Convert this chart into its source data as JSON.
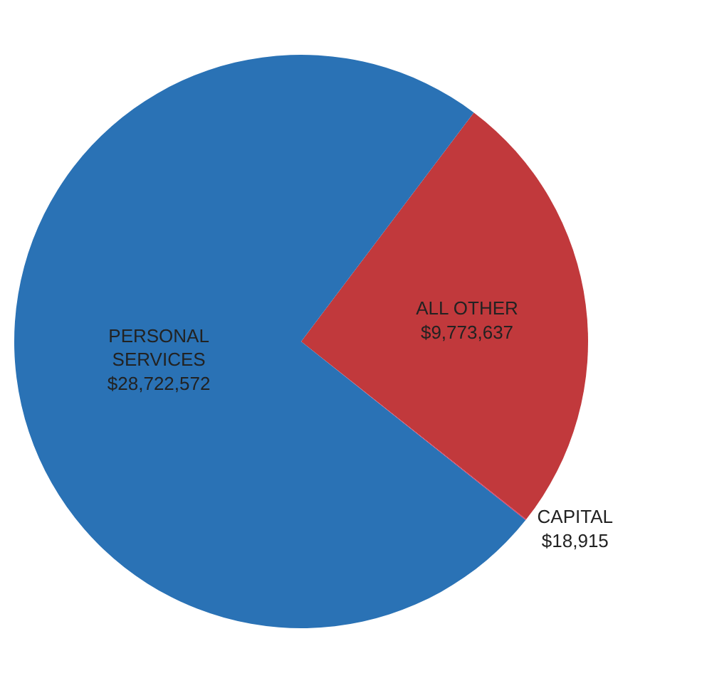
{
  "chart_data": {
    "type": "pie",
    "categories": [
      "ALL OTHER",
      "CAPITAL",
      "PERSONAL SERVICES"
    ],
    "values": [
      9773637,
      18915,
      28722572
    ],
    "value_labels": [
      "$9,773,637",
      "$18,915",
      "$28,722,572"
    ],
    "colors": [
      "#c1393c",
      "#e0335e",
      "#2a72b5"
    ],
    "legend": false
  }
}
